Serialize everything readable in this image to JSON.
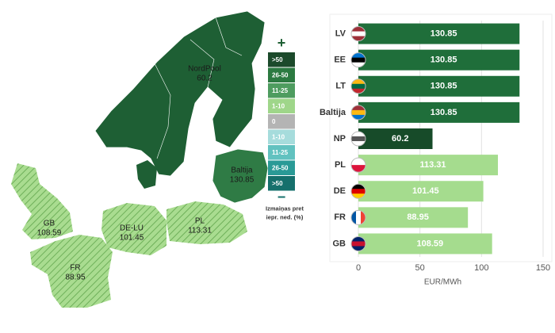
{
  "chart_data": [
    {
      "type": "map",
      "regions": [
        {
          "name": "NordPool",
          "value": 60.2
        },
        {
          "name": "Baltija",
          "value": 130.85
        },
        {
          "name": "GB",
          "value": 108.59
        },
        {
          "name": "DE-LU",
          "value": 101.45
        },
        {
          "name": "PL",
          "value": 113.31
        },
        {
          "name": "FR",
          "value": 88.95
        }
      ],
      "legend": {
        "top_symbol": "+",
        "bottom_symbol": "−",
        "title": [
          "Izmaiņas pret",
          "iepr. ned. (%)"
        ],
        "items": [
          {
            "label": ">50",
            "color": "#1c4a2b"
          },
          {
            "label": "26-50",
            "color": "#2c7a41"
          },
          {
            "label": "11-25",
            "color": "#4e9c5f"
          },
          {
            "label": "1-10",
            "color": "#9fd68a"
          },
          {
            "label": "0",
            "color": "#b4b4b4"
          },
          {
            "label": "1-10",
            "color": "#a6dcdc"
          },
          {
            "label": "11-25",
            "color": "#62c2c0"
          },
          {
            "label": "26-50",
            "color": "#2a9a96"
          },
          {
            "label": ">50",
            "color": "#16706c"
          }
        ]
      }
    },
    {
      "type": "bar",
      "categories": [
        "LV",
        "EE",
        "LT",
        "Baltija",
        "NP",
        "PL",
        "DE",
        "FR",
        "GB"
      ],
      "values": [
        130.85,
        130.85,
        130.85,
        130.85,
        60.2,
        113.31,
        101.45,
        88.95,
        108.59
      ],
      "colors": [
        "#1f6e3a",
        "#1f6e3a",
        "#1f6e3a",
        "#1f6e3a",
        "#174b29",
        "#a5dc8e",
        "#a5dc8e",
        "#a5dc8e",
        "#a5dc8e"
      ],
      "x_label": "EUR/MWh",
      "xlim": [
        0,
        150
      ],
      "xticks": [
        0,
        50,
        100,
        150
      ],
      "grid": true
    }
  ]
}
